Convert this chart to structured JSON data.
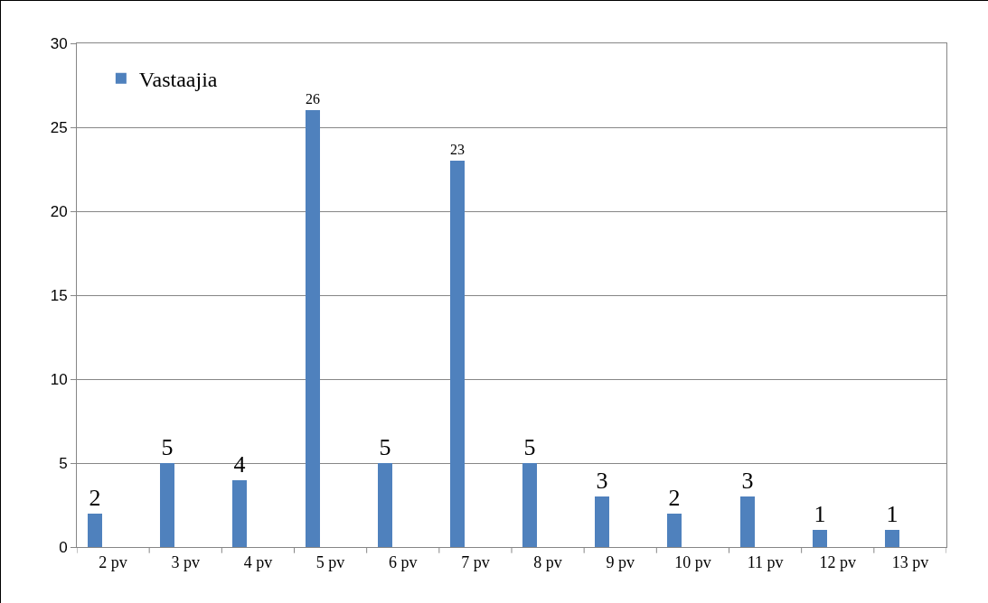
{
  "chart_data": {
    "type": "bar",
    "categories": [
      "2 pv",
      "3 pv",
      "4 pv",
      "5 pv",
      "6 pv",
      "7 pv",
      "8 pv",
      "9 pv",
      "10 pv",
      "11 pv",
      "12 pv",
      "13 pv"
    ],
    "series": [
      {
        "name": "Vastaajia",
        "color": "#4f81bd",
        "values": [
          2,
          5,
          4,
          26,
          5,
          23,
          5,
          3,
          2,
          3,
          1,
          1
        ]
      }
    ],
    "ylim": [
      0,
      30
    ],
    "yticks": [
      0,
      5,
      10,
      15,
      20,
      25,
      30
    ],
    "grid": "y",
    "legend": "top left",
    "data_labels": true
  }
}
